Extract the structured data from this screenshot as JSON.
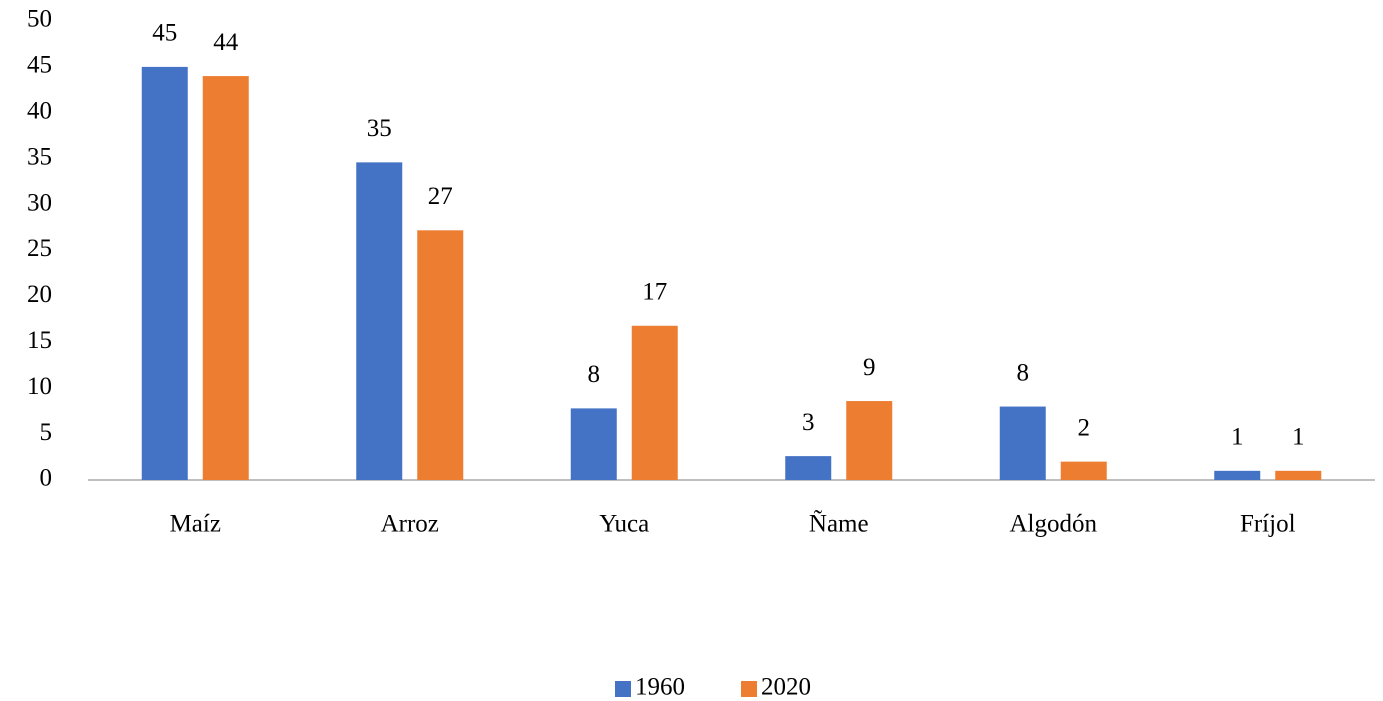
{
  "chart_data": {
    "type": "bar",
    "categories": [
      "Maíz",
      "Arroz",
      "Yuca",
      "Ñame",
      "Algodón",
      "Fríjol"
    ],
    "series": [
      {
        "name": "1960",
        "color": "#4472c4",
        "values": [
          45,
          34.6,
          7.8,
          2.6,
          8,
          1
        ],
        "value_labels": [
          "45",
          "35",
          "8",
          "3",
          "8",
          "1"
        ]
      },
      {
        "name": "2020",
        "color": "#ed7d31",
        "values": [
          44,
          27.2,
          16.8,
          8.6,
          2,
          1
        ],
        "value_labels": [
          "44",
          "27",
          "17",
          "9",
          "2",
          "1"
        ]
      }
    ],
    "ylim": [
      0,
      50
    ],
    "yticks": [
      0,
      5,
      10,
      15,
      20,
      25,
      30,
      35,
      40,
      45,
      50
    ],
    "grid": false,
    "legend": "bottom"
  }
}
